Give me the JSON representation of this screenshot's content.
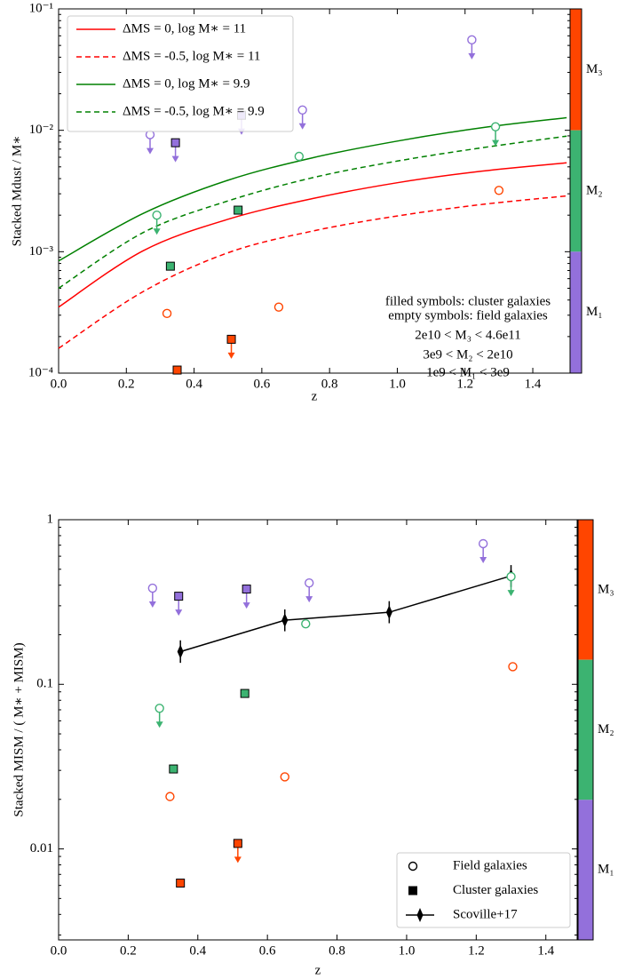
{
  "chart_data": [
    {
      "type": "scatter",
      "xlabel": "z",
      "ylabel": "Stacked Mdust / M∗",
      "xlim": [
        0,
        1.51
      ],
      "ylim": [
        0.0001,
        0.1
      ],
      "log_y": true,
      "xticks": [
        {
          "value": 0,
          "label": "0.0"
        },
        0.2,
        0.4,
        0.6,
        0.8,
        {
          "value": 1,
          "label": "1.0"
        },
        1.2,
        1.4
      ],
      "yticks": [
        {
          "value": 0.0001,
          "label": "10⁻⁴"
        },
        {
          "value": 0.001,
          "label": "10⁻³"
        },
        {
          "value": 0.01,
          "label": "10⁻²"
        },
        {
          "value": 0.1,
          "label": "10⁻¹"
        }
      ],
      "legend": "upper left",
      "series": [
        {
          "name": "ΔMS = 0, log M∗ = 11",
          "color": "#ff0000",
          "dash": "solid",
          "x": [
            0,
            0.25,
            0.5,
            0.75,
            1,
            1.25,
            1.5
          ],
          "values": [
            0.00035,
            0.00102,
            0.00185,
            0.00274,
            0.0037,
            0.00461,
            0.0054
          ]
        },
        {
          "name": "ΔMS = -0.5, log M∗ = 11",
          "color": "#ff0000",
          "dash": "dashed",
          "x": [
            0,
            0.25,
            0.5,
            0.75,
            1,
            1.25,
            1.5
          ],
          "values": [
            0.00016,
            0.00047,
            0.00098,
            0.00148,
            0.00197,
            0.00245,
            0.00288
          ]
        },
        {
          "name": "ΔMS = 0, log M∗ = 9.9",
          "color": "#008000",
          "dash": "solid",
          "x": [
            0,
            0.25,
            0.5,
            0.75,
            1,
            1.25,
            1.5
          ],
          "values": [
            0.00084,
            0.00207,
            0.00388,
            0.00594,
            0.00815,
            0.0105,
            0.0127
          ]
        },
        {
          "name": "ΔMS = -0.5, log M∗ = 9.9",
          "color": "#008000",
          "dash": "dashed",
          "x": [
            0,
            0.25,
            0.5,
            0.75,
            1,
            1.25,
            1.5
          ],
          "values": [
            0.0005,
            0.00144,
            0.00262,
            0.00407,
            0.00558,
            0.00718,
            0.00895
          ]
        }
      ],
      "points": {
        "x": [
          0.27,
          0.345,
          0.54,
          0.72,
          1.22,
          1.29,
          0.71,
          0.53,
          0.29,
          0.33,
          0.32,
          0.65,
          1.3,
          0.51,
          0.35
        ],
        "values": [
          0.0092,
          0.0079,
          0.0133,
          0.0147,
          0.0556,
          0.0107,
          0.0061,
          0.0022,
          0.002,
          0.00076,
          0.00031,
          0.00035,
          0.0032,
          0.00019,
          0.000106
        ],
        "markers": [
          "circle",
          "square",
          "square",
          "circle",
          "circle",
          "circle",
          "circle",
          "square",
          "circle",
          "square",
          "circle",
          "circle",
          "circle",
          "square",
          "square"
        ],
        "colors": [
          "#9370db",
          "#9370db",
          "#9370db",
          "#9370db",
          "#9370db",
          "#3cb371",
          "#3cb371",
          "#3cb371",
          "#3cb371",
          "#3cb371",
          "#ff4500",
          "#ff4500",
          "#ff4500",
          "#ff4500",
          "#ff4500"
        ],
        "upper_limit": [
          true,
          true,
          true,
          true,
          true,
          true,
          false,
          false,
          true,
          false,
          false,
          false,
          false,
          true,
          false
        ]
      },
      "annotations": [
        "filled symbols: cluster galaxies",
        "empty symbols: field galaxies",
        "2e10 < M₃ < 4.6e11",
        "3e9 < M₂ < 2e10",
        "1e9 < M₁ < 3e9"
      ],
      "colorbar": {
        "labels": [
          "M₃",
          "M₂",
          "M₁"
        ],
        "colors": [
          "#ff4500",
          "#3cb371",
          "#9370db"
        ]
      }
    },
    {
      "type": "scatter",
      "xlabel": "z",
      "ylabel": "Stacked MISM / ( M∗ + MISM)",
      "xlim": [
        0,
        1.49
      ],
      "ylim": [
        0.0028,
        1
      ],
      "log_y": true,
      "xticks": [
        {
          "value": 0,
          "label": "0.0"
        },
        0.2,
        0.4,
        0.6,
        0.8,
        {
          "value": 1,
          "label": "1.0"
        },
        1.2,
        1.4
      ],
      "yticks": [
        0.01,
        0.1,
        1
      ],
      "legend": "lower right",
      "legend_entries": [
        {
          "name": "Field galaxies",
          "marker": "circle"
        },
        {
          "name": "Cluster galaxies",
          "marker": "square"
        }
      ],
      "series": [
        {
          "name": "Scoville+17",
          "color": "#000000",
          "dash": "solid",
          "marker": "diamond",
          "x": [
            0.35,
            0.65,
            0.95,
            1.3
          ],
          "values": [
            0.158,
            0.245,
            0.274,
            0.456
          ],
          "low": [
            0.135,
            0.21,
            0.235,
            0.39
          ],
          "high": [
            0.185,
            0.285,
            0.32,
            0.53
          ]
        }
      ],
      "points": {
        "x": [
          0.27,
          0.345,
          0.54,
          0.72,
          1.22,
          1.3,
          0.71,
          0.535,
          0.29,
          0.33,
          0.32,
          0.65,
          1.305,
          0.515,
          0.35
        ],
        "values": [
          0.384,
          0.343,
          0.379,
          0.413,
          0.715,
          0.451,
          0.233,
          0.088,
          0.0715,
          0.0306,
          0.0208,
          0.0274,
          0.128,
          0.0108,
          0.0062
        ],
        "markers": [
          "circle",
          "square",
          "square",
          "circle",
          "circle",
          "circle",
          "circle",
          "square",
          "circle",
          "square",
          "circle",
          "circle",
          "circle",
          "square",
          "square"
        ],
        "colors": [
          "#9370db",
          "#9370db",
          "#9370db",
          "#9370db",
          "#9370db",
          "#3cb371",
          "#3cb371",
          "#3cb371",
          "#3cb371",
          "#3cb371",
          "#ff4500",
          "#ff4500",
          "#ff4500",
          "#ff4500",
          "#ff4500"
        ],
        "upper_limit": [
          true,
          true,
          true,
          true,
          true,
          true,
          false,
          false,
          true,
          false,
          false,
          false,
          false,
          true,
          false
        ]
      },
      "colorbar": {
        "labels": [
          "M₃",
          "M₂",
          "M₁"
        ],
        "colors": [
          "#ff4500",
          "#3cb371",
          "#9370db"
        ]
      }
    }
  ]
}
